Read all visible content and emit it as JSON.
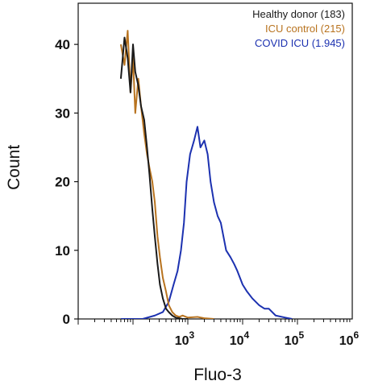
{
  "chart_data": {
    "type": "line",
    "xlabel": "Fluo-3",
    "ylabel": "Count",
    "x_scale": "log",
    "xlim": [
      10,
      1000000
    ],
    "ylim": [
      0,
      46
    ],
    "y_ticks": [
      0,
      10,
      20,
      30,
      40
    ],
    "y_tick_labels": [
      "0",
      "10",
      "20",
      "30",
      "40"
    ],
    "x_ticks": [
      1000,
      10000,
      100000,
      1000000
    ],
    "x_tick_labels": [
      {
        "base": "10",
        "exp": "3"
      },
      {
        "base": "10",
        "exp": "4"
      },
      {
        "base": "10",
        "exp": "5"
      },
      {
        "base": "10",
        "exp": "6"
      }
    ],
    "legend_position": "top-right",
    "series": [
      {
        "name": "Healthy donor (183)",
        "color": "#1a1a1a",
        "x": [
          60,
          70,
          80,
          90,
          100,
          110,
          125,
          140,
          160,
          180,
          200,
          225,
          250,
          280,
          310,
          350,
          400,
          450,
          520,
          600,
          700,
          800,
          1000
        ],
        "y": [
          35,
          41,
          38,
          33,
          40,
          36,
          34,
          31,
          29,
          25,
          21,
          16,
          12,
          8,
          5,
          3,
          1.5,
          1,
          0.5,
          0.2,
          0.1,
          0,
          0
        ]
      },
      {
        "name": "ICU control (215)",
        "color": "#b8731f",
        "x": [
          60,
          70,
          80,
          90,
          100,
          110,
          125,
          140,
          160,
          180,
          200,
          225,
          250,
          280,
          310,
          350,
          400,
          450,
          520,
          600,
          700,
          800,
          1000,
          1500,
          2000,
          3000
        ],
        "y": [
          40,
          37,
          42,
          33,
          38,
          30,
          35,
          31,
          27,
          24,
          22,
          20,
          17,
          12,
          9,
          6,
          4,
          2,
          1,
          0.5,
          0.3,
          0.5,
          0.2,
          0.3,
          0.1,
          0
        ]
      },
      {
        "name": "COVID ICU (1.945)",
        "color": "#1c31b0",
        "x": [
          60,
          150,
          250,
          350,
          450,
          550,
          650,
          750,
          850,
          950,
          1100,
          1300,
          1500,
          1700,
          2000,
          2300,
          2600,
          3000,
          3500,
          4000,
          5000,
          6000,
          7000,
          8000,
          10000,
          12000,
          15000,
          20000,
          25000,
          30000,
          40000,
          60000,
          80000
        ],
        "y": [
          0,
          0,
          0.5,
          1,
          2.5,
          5,
          7,
          10,
          14,
          20,
          24,
          26,
          28,
          25,
          26,
          24,
          20,
          17,
          15,
          14,
          10,
          9,
          8,
          7,
          5,
          4,
          3,
          2,
          1.5,
          1.5,
          0.5,
          0.2,
          0
        ]
      }
    ]
  }
}
